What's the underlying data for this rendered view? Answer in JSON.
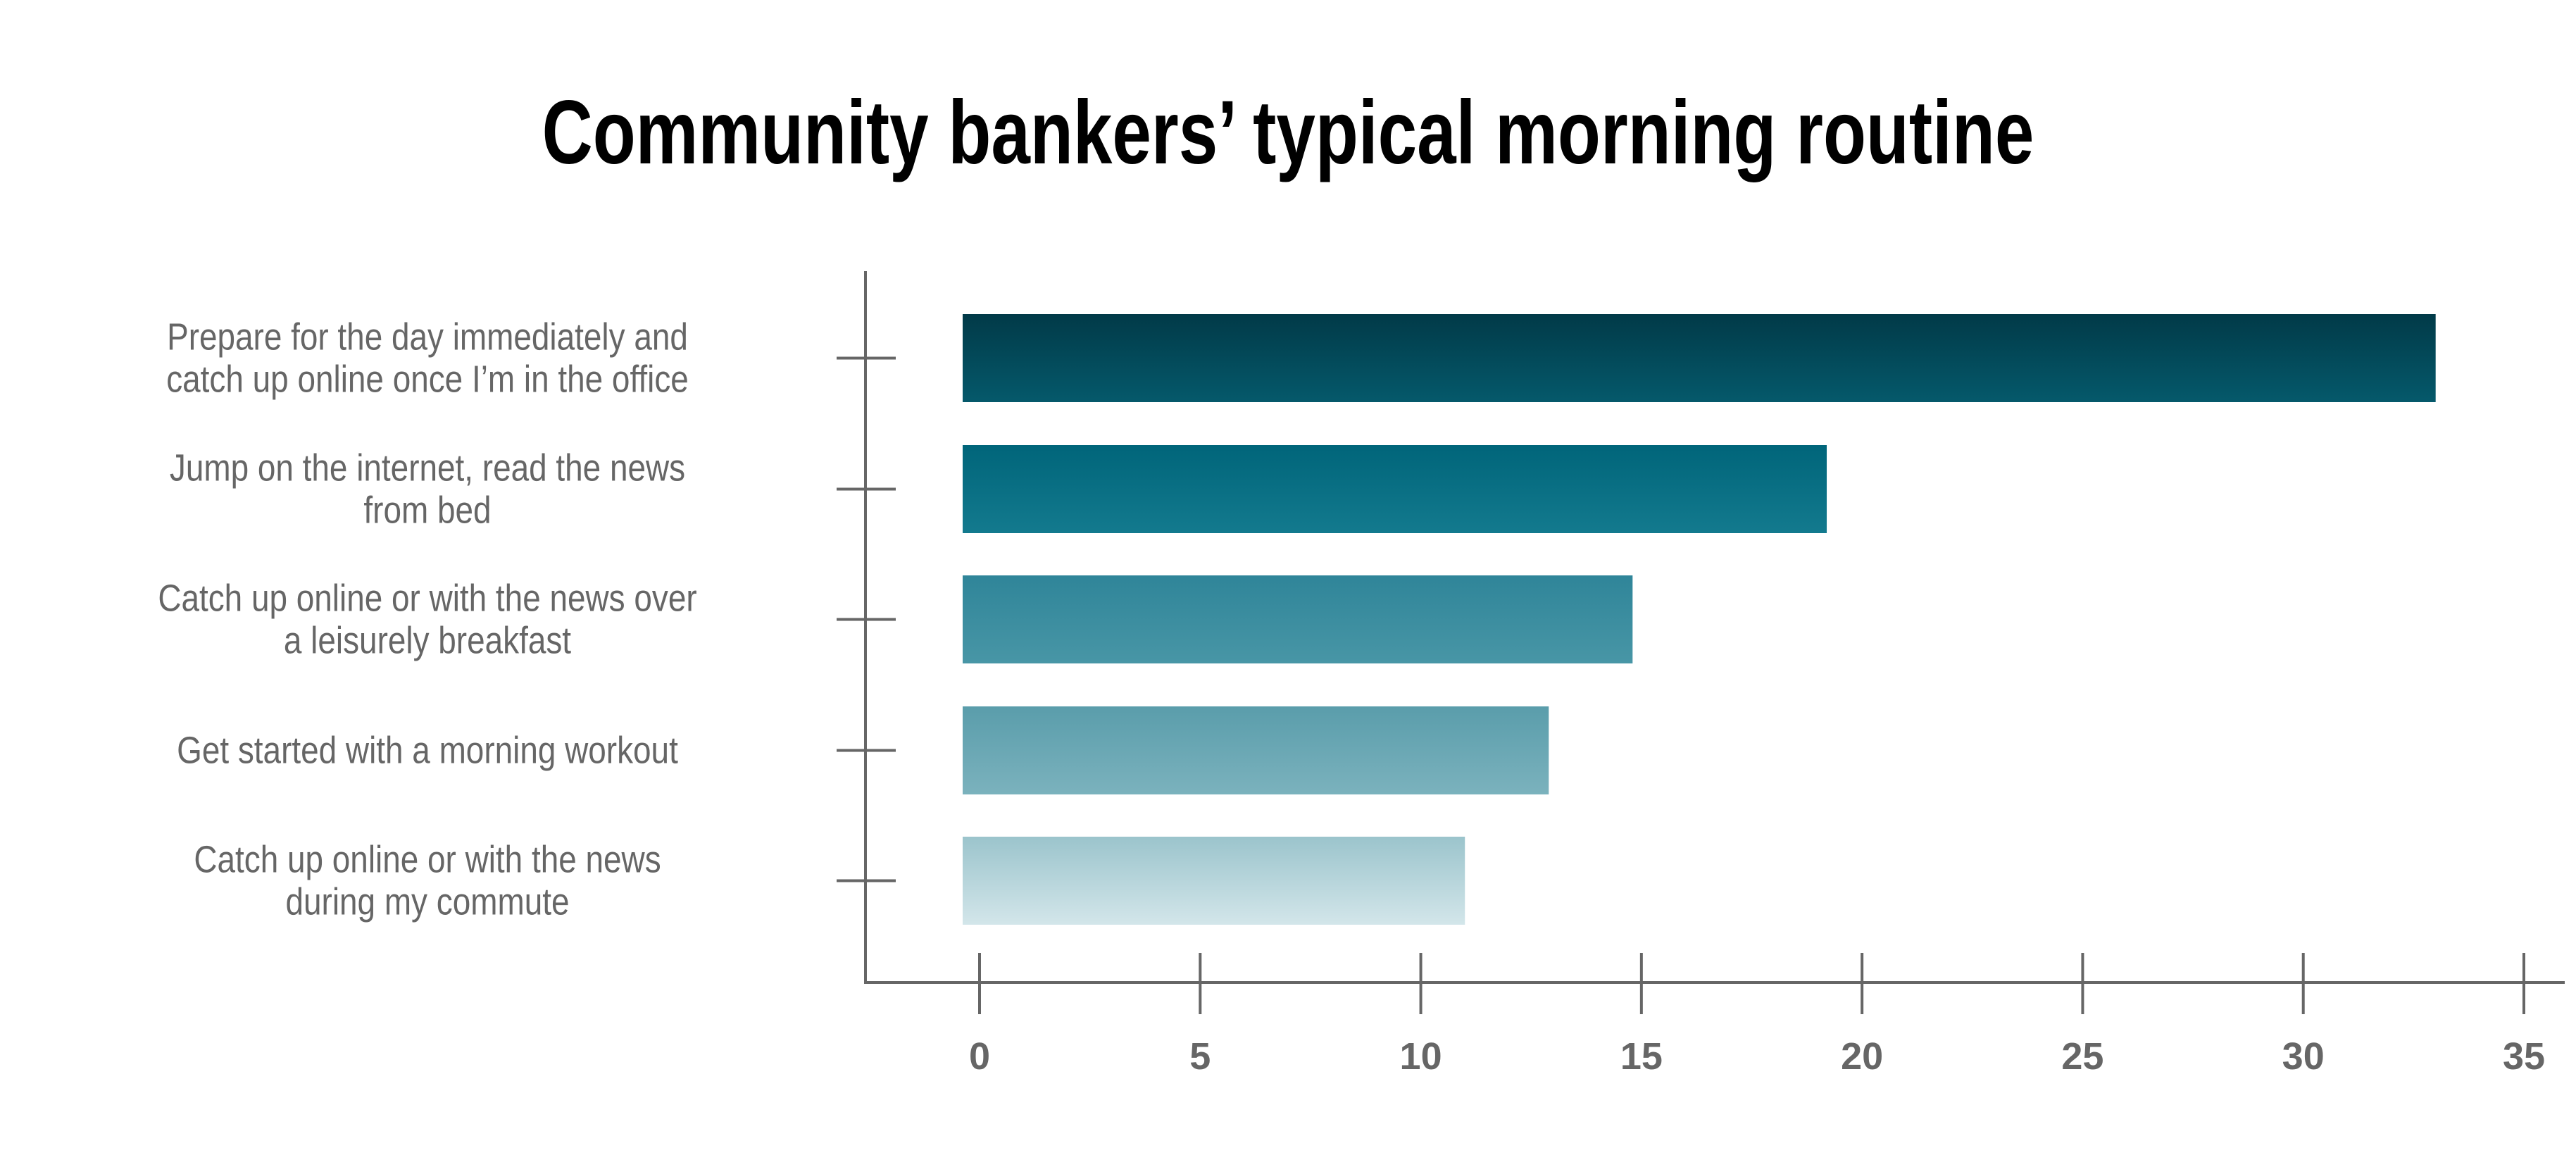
{
  "chart_data": {
    "type": "bar",
    "orientation": "horizontal",
    "title": "Community bankers’ typical morning routine",
    "xlabel": "",
    "ylabel": "",
    "xlim": [
      0,
      35
    ],
    "xticks": [
      0,
      5,
      10,
      15,
      20,
      25,
      30,
      35
    ],
    "xtick_labels": [
      "0",
      "5",
      "10",
      "15",
      "20",
      "25",
      "30",
      "35"
    ],
    "grid": false,
    "categories": [
      [
        "Prepare for the day immediately and",
        "catch up online once I’m in the office"
      ],
      [
        "Jump on the internet, read the news",
        "from bed"
      ],
      [
        "Catch up online or with the news over",
        "a leisurely breakfast"
      ],
      [
        "Get started with a morning workout"
      ],
      [
        "Catch up online or with the news",
        "during my commute"
      ]
    ],
    "values": [
      33,
      19.2,
      14.8,
      12.9,
      11
    ],
    "colors": [
      [
        "#013a48",
        "#05596b"
      ],
      [
        "#00657a",
        "#137a8e"
      ],
      [
        "#2f8599",
        "#4896a6"
      ],
      [
        "#5a9dab",
        "#7bb2bd"
      ],
      [
        "#9bc4cc",
        "#d3e6ea"
      ]
    ],
    "axis_color": "#666666"
  }
}
